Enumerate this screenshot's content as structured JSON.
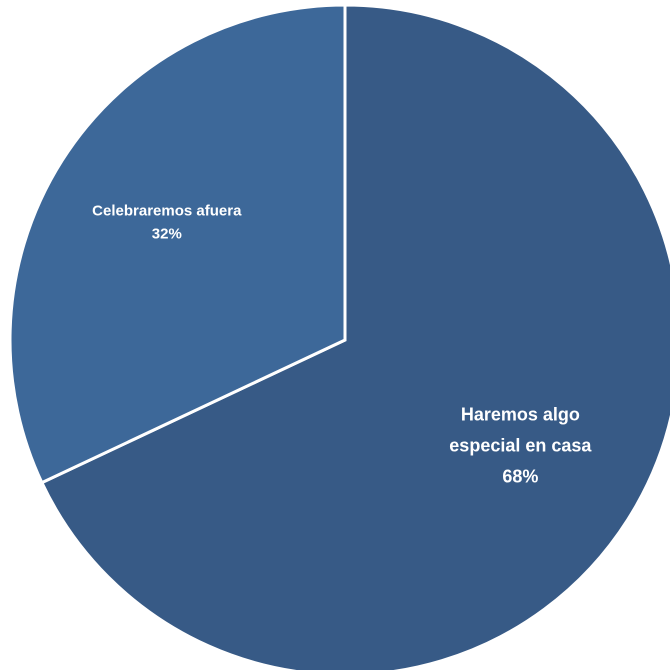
{
  "chart_data": {
    "type": "pie",
    "title": "",
    "slices": [
      {
        "label": "Haremos algo especial en casa",
        "value": 68,
        "value_label": "68%",
        "color": "#375a86",
        "label_lines": [
          "Haremos algo",
          "especial en casa",
          "68%"
        ]
      },
      {
        "label": "Celebraremos afuera",
        "value": 32,
        "value_label": "32%",
        "color": "#3d6899",
        "label_lines": [
          "Celebraremos afuera",
          "32%"
        ]
      }
    ],
    "start_angle": "12 o'clock",
    "direction": "clockwise",
    "legend": "none"
  }
}
